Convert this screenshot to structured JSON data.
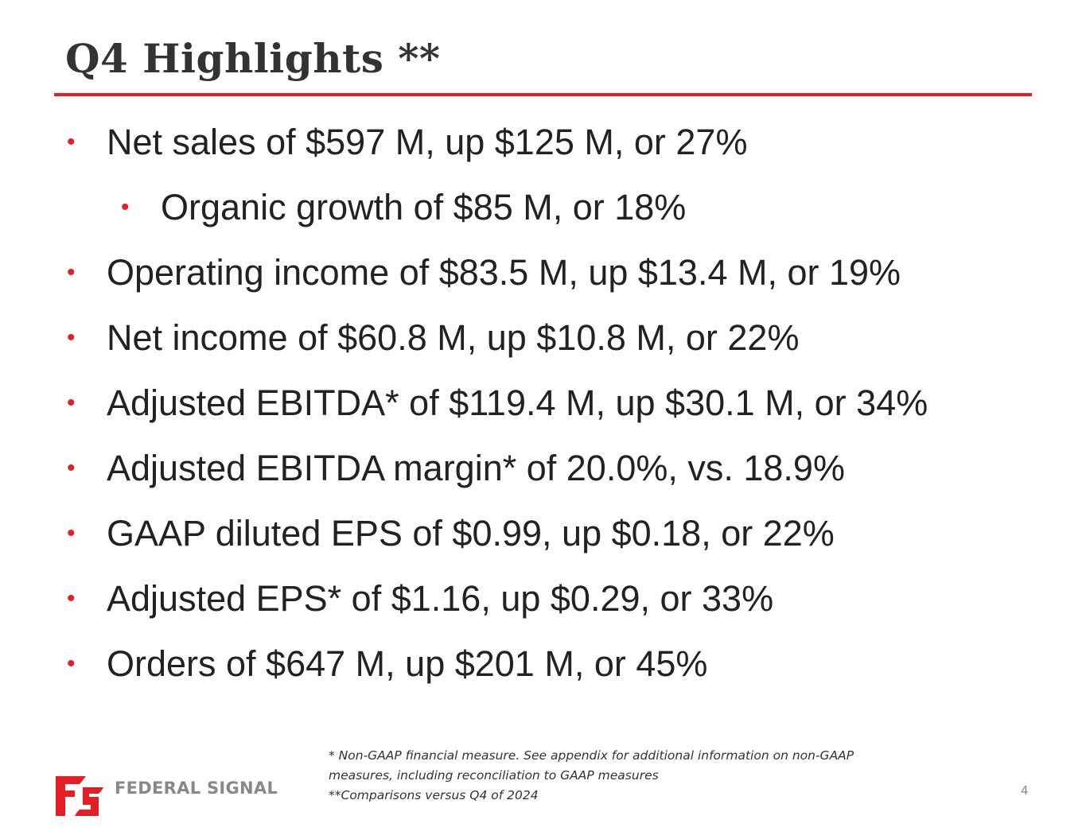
{
  "slide": {
    "title": "Q4 Highlights **",
    "page_number": "4"
  },
  "bullets": [
    {
      "level": 1,
      "text": "Net sales of $597 M, up $125 M, or 27%"
    },
    {
      "level": 2,
      "text": "Organic growth of $85 M, or 18%"
    },
    {
      "level": 1,
      "text": "Operating income of $83.5 M, up $13.4 M, or 19%"
    },
    {
      "level": 1,
      "text": "Net income of $60.8 M, up $10.8 M, or 22%"
    },
    {
      "level": 1,
      "text": "Adjusted EBITDA* of $119.4 M, up $30.1 M, or 34%"
    },
    {
      "level": 1,
      "text": "Adjusted EBITDA margin* of 20.0%, vs. 18.9%"
    },
    {
      "level": 1,
      "text": "GAAP diluted EPS of $0.99, up $0.18, or 22%"
    },
    {
      "level": 1,
      "text": "Adjusted EPS* of $1.16, up $0.29, or 33%"
    },
    {
      "level": 1,
      "text": "Orders of $647 M, up $201 M, or 45%"
    }
  ],
  "bullet_symbol": "•",
  "footnotes": [
    "* Non-GAAP financial measure. See appendix for additional information on non-GAAP",
    "measures, including reconciliation to GAAP measures",
    "**Comparisons versus Q4 of 2024"
  ],
  "logo": {
    "text": "FEDERAL SIGNAL",
    "icon": "federal-signal-logo-icon"
  },
  "colors": {
    "accent": "#e31e24",
    "title": "#333333",
    "body_text": "#222222",
    "logo_text": "#888888"
  }
}
